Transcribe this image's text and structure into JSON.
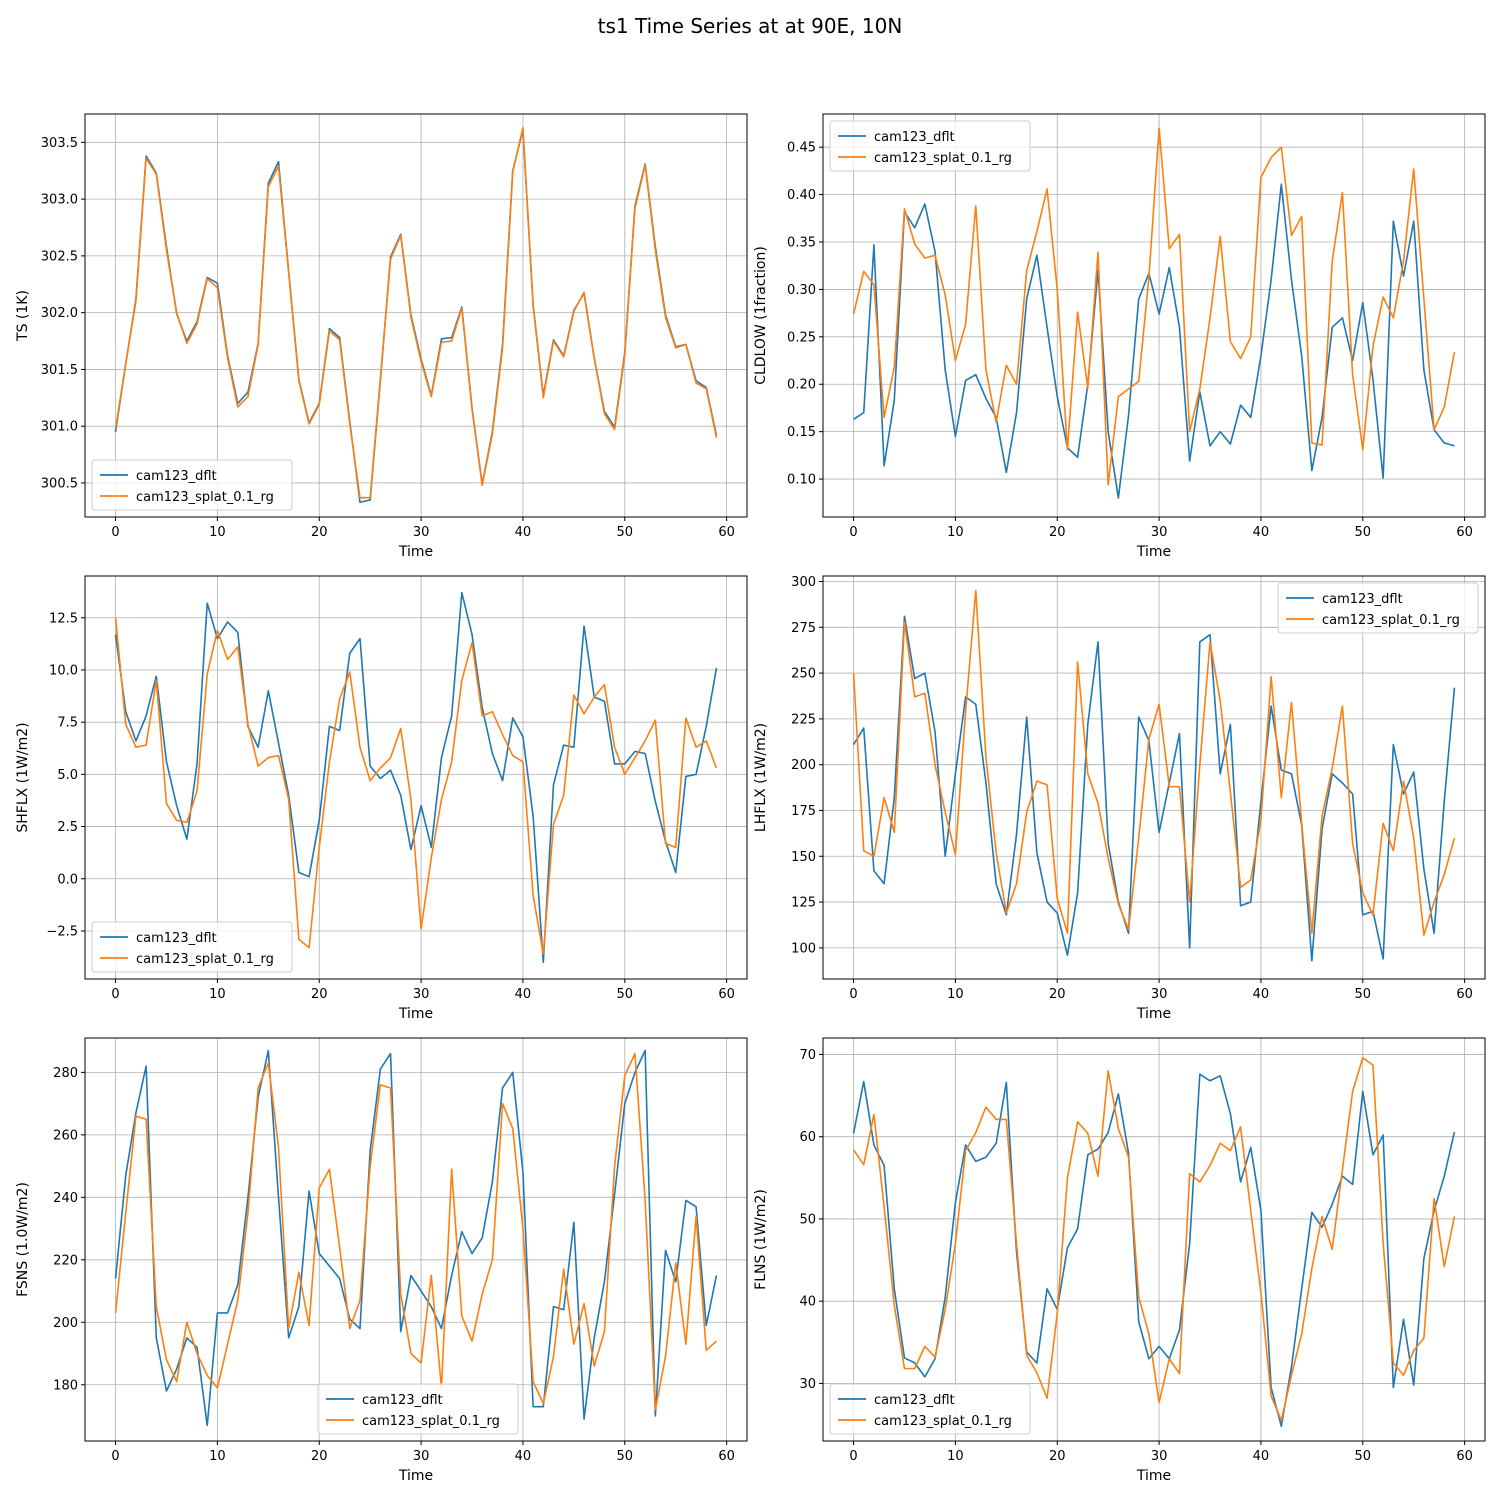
{
  "title": "ts1 Time Series at at 90E, 10N",
  "series_names": [
    "cam123_dflt",
    "cam123_splat_0.1_rg"
  ],
  "colors": {
    "cam123_dflt": "#1f77b4",
    "cam123_splat_0.1_rg": "#ff7f0e",
    "grid": "#b0b0b0"
  },
  "chart_data": [
    {
      "type": "line",
      "ylabel": "TS (1K)",
      "xlabel": "Time",
      "xlim": [
        -3,
        62
      ],
      "ylim": [
        300.2,
        303.75
      ],
      "xticks": [
        0,
        10,
        20,
        30,
        40,
        50,
        60
      ],
      "yticks": [
        300.5,
        301.0,
        301.5,
        302.0,
        302.5,
        303.0,
        303.5
      ],
      "ytick_labels": [
        "300.5",
        "301.0",
        "301.5",
        "302.0",
        "302.5",
        "303.0",
        "303.5"
      ],
      "legend": "lower-left",
      "series": [
        {
          "name": "cam123_dflt",
          "values": [
            300.95,
            301.55,
            302.12,
            303.38,
            303.23,
            302.58,
            301.99,
            301.75,
            301.92,
            302.31,
            302.26,
            301.62,
            301.2,
            301.3,
            301.73,
            303.14,
            303.33,
            302.36,
            301.41,
            301.03,
            301.2,
            301.86,
            301.78,
            301.04,
            300.33,
            300.35,
            301.4,
            302.49,
            302.69,
            301.98,
            301.59,
            301.27,
            301.77,
            301.78,
            302.05,
            301.16,
            300.49,
            300.95,
            301.72,
            303.25,
            303.61,
            302.07,
            301.27,
            301.76,
            301.62,
            302.02,
            302.17,
            301.6,
            301.13,
            300.99,
            301.65,
            302.94,
            303.31,
            302.58,
            301.98,
            301.7,
            301.72,
            301.4,
            301.34,
            300.92
          ]
        },
        {
          "name": "cam123_splat_0.1_rg",
          "values": [
            300.98,
            301.55,
            302.1,
            303.36,
            303.22,
            302.55,
            302.0,
            301.73,
            301.9,
            302.3,
            302.22,
            301.6,
            301.17,
            301.26,
            301.72,
            303.11,
            303.29,
            302.35,
            301.4,
            301.02,
            301.19,
            301.84,
            301.76,
            301.02,
            300.37,
            300.37,
            301.42,
            302.47,
            302.68,
            301.96,
            301.57,
            301.26,
            301.74,
            301.75,
            302.04,
            301.15,
            300.48,
            300.93,
            301.69,
            303.24,
            303.63,
            302.06,
            301.25,
            301.75,
            301.61,
            302.01,
            302.18,
            301.6,
            301.11,
            300.97,
            301.63,
            302.92,
            303.3,
            302.55,
            301.96,
            301.69,
            301.72,
            301.38,
            301.33,
            300.9
          ]
        }
      ]
    },
    {
      "type": "line",
      "ylabel": "CLDLOW (1fraction)",
      "xlabel": "Time",
      "xlim": [
        -3,
        62
      ],
      "ylim": [
        0.06,
        0.485
      ],
      "xticks": [
        0,
        10,
        20,
        30,
        40,
        50,
        60
      ],
      "yticks": [
        0.1,
        0.15,
        0.2,
        0.25,
        0.3,
        0.35,
        0.4,
        0.45
      ],
      "ytick_labels": [
        "0.10",
        "0.15",
        "0.20",
        "0.25",
        "0.30",
        "0.35",
        "0.40",
        "0.45"
      ],
      "legend": "upper-left",
      "series": [
        {
          "name": "cam123_dflt",
          "values": [
            0.163,
            0.17,
            0.347,
            0.114,
            0.183,
            0.382,
            0.365,
            0.39,
            0.34,
            0.215,
            0.145,
            0.204,
            0.21,
            0.185,
            0.165,
            0.107,
            0.17,
            0.29,
            0.336,
            0.26,
            0.187,
            0.133,
            0.123,
            0.2,
            0.32,
            0.15,
            0.08,
            0.167,
            0.29,
            0.317,
            0.274,
            0.323,
            0.26,
            0.119,
            0.192,
            0.135,
            0.15,
            0.137,
            0.178,
            0.165,
            0.23,
            0.31,
            0.411,
            0.31,
            0.23,
            0.109,
            0.165,
            0.26,
            0.27,
            0.225,
            0.286,
            0.205,
            0.101,
            0.372,
            0.314,
            0.372,
            0.215,
            0.152,
            0.138,
            0.135
          ]
        },
        {
          "name": "cam123_splat_0.1_rg",
          "values": [
            0.274,
            0.319,
            0.305,
            0.165,
            0.218,
            0.385,
            0.348,
            0.333,
            0.336,
            0.294,
            0.225,
            0.263,
            0.388,
            0.215,
            0.16,
            0.22,
            0.2,
            0.32,
            0.361,
            0.406,
            0.3,
            0.131,
            0.276,
            0.196,
            0.339,
            0.094,
            0.187,
            0.195,
            0.203,
            0.313,
            0.47,
            0.343,
            0.358,
            0.15,
            0.195,
            0.27,
            0.356,
            0.245,
            0.227,
            0.25,
            0.418,
            0.439,
            0.45,
            0.357,
            0.377,
            0.138,
            0.136,
            0.33,
            0.402,
            0.21,
            0.131,
            0.24,
            0.292,
            0.27,
            0.33,
            0.427,
            0.29,
            0.152,
            0.176,
            0.234
          ]
        }
      ]
    },
    {
      "type": "line",
      "ylabel": "SHFLX (1W/m2)",
      "xlabel": "Time",
      "xlim": [
        -3,
        62
      ],
      "ylim": [
        -4.8,
        14.5
      ],
      "xticks": [
        0,
        10,
        20,
        30,
        40,
        50,
        60
      ],
      "yticks": [
        -2.5,
        0.0,
        2.5,
        5.0,
        7.5,
        10.0,
        12.5
      ],
      "ytick_labels": [
        "−2.5",
        "0.0",
        "2.5",
        "5.0",
        "7.5",
        "10.0",
        "12.5"
      ],
      "legend": "lower-left",
      "series": [
        {
          "name": "cam123_dflt",
          "values": [
            11.7,
            8.0,
            6.6,
            7.8,
            9.7,
            5.6,
            3.5,
            1.9,
            5.5,
            13.2,
            11.5,
            12.3,
            11.8,
            7.3,
            6.3,
            9.0,
            6.5,
            4.0,
            0.3,
            0.1,
            2.8,
            7.3,
            7.1,
            10.8,
            11.5,
            5.4,
            4.8,
            5.2,
            4.0,
            1.4,
            3.5,
            1.5,
            5.8,
            7.8,
            13.7,
            11.7,
            8.2,
            6.0,
            4.7,
            7.7,
            6.8,
            3.0,
            -4.0,
            4.5,
            6.4,
            6.3,
            12.1,
            8.7,
            8.5,
            5.5,
            5.5,
            6.1,
            6.0,
            3.7,
            1.8,
            0.3,
            4.9,
            5.0,
            7.3,
            10.1
          ]
        },
        {
          "name": "cam123_splat_0.1_rg",
          "values": [
            12.5,
            7.4,
            6.3,
            6.4,
            9.5,
            3.6,
            2.8,
            2.7,
            4.2,
            9.8,
            11.9,
            10.5,
            11.1,
            7.4,
            5.4,
            5.8,
            5.9,
            3.8,
            -2.9,
            -3.3,
            1.5,
            5.6,
            8.6,
            9.9,
            6.3,
            4.7,
            5.3,
            5.8,
            7.2,
            3.8,
            -2.4,
            1.0,
            3.8,
            5.6,
            9.5,
            11.3,
            7.8,
            8.0,
            6.9,
            5.9,
            5.6,
            -0.8,
            -3.6,
            2.6,
            4.0,
            8.8,
            7.9,
            8.7,
            9.3,
            6.3,
            5.0,
            5.8,
            6.6,
            7.6,
            1.7,
            1.5,
            7.7,
            6.3,
            6.6,
            5.3
          ]
        }
      ]
    },
    {
      "type": "line",
      "ylabel": "LHFLX (1W/m2)",
      "xlabel": "Time",
      "xlim": [
        -3,
        62
      ],
      "ylim": [
        83,
        303
      ],
      "xticks": [
        0,
        10,
        20,
        30,
        40,
        50,
        60
      ],
      "yticks": [
        100,
        125,
        150,
        175,
        200,
        225,
        250,
        275,
        300
      ],
      "ytick_labels": [
        "100",
        "125",
        "150",
        "175",
        "200",
        "225",
        "250",
        "275",
        "300"
      ],
      "legend": "upper-right",
      "series": [
        {
          "name": "cam123_dflt",
          "values": [
            211,
            220,
            142,
            135,
            182,
            281,
            247,
            250,
            218,
            150,
            195,
            237,
            233,
            190,
            135,
            118,
            162,
            226,
            152,
            125,
            119,
            96,
            130,
            222,
            267,
            157,
            125,
            108,
            226,
            213,
            163,
            190,
            217,
            100,
            267,
            271,
            195,
            222,
            123,
            125,
            180,
            232,
            197,
            195,
            167,
            93,
            165,
            195,
            190,
            184,
            118,
            120,
            94,
            211,
            184,
            196,
            143,
            108,
            180,
            242
          ]
        },
        {
          "name": "cam123_splat_0.1_rg",
          "values": [
            250,
            153,
            150,
            182,
            163,
            278,
            237,
            239,
            200,
            174,
            151,
            229,
            295,
            204,
            152,
            119,
            135,
            174,
            191,
            189,
            127,
            108,
            256,
            195,
            179,
            149,
            124,
            110,
            160,
            214,
            233,
            188,
            188,
            125,
            200,
            267,
            235,
            185,
            133,
            137,
            170,
            248,
            182,
            234,
            168,
            108,
            172,
            198,
            232,
            157,
            130,
            118,
            168,
            153,
            191,
            160,
            107,
            125,
            140,
            160
          ]
        }
      ]
    },
    {
      "type": "line",
      "ylabel": "FSNS (1.0W/m2)",
      "xlabel": "Time",
      "xlim": [
        -3,
        62
      ],
      "ylim": [
        162,
        291
      ],
      "xticks": [
        0,
        10,
        20,
        30,
        40,
        50,
        60
      ],
      "yticks": [
        180,
        200,
        220,
        240,
        260,
        280
      ],
      "ytick_labels": [
        "180",
        "200",
        "220",
        "240",
        "260",
        "280"
      ],
      "legend": "lower-center",
      "series": [
        {
          "name": "cam123_dflt",
          "values": [
            214,
            247,
            267,
            282,
            195,
            178,
            185,
            195,
            192,
            167,
            203,
            203,
            212,
            240,
            272,
            287,
            240,
            195,
            205,
            242,
            222,
            218,
            214,
            201,
            198,
            255,
            281,
            286,
            197,
            215,
            210,
            205,
            198,
            215,
            229,
            222,
            227,
            245,
            275,
            280,
            248,
            173,
            173,
            205,
            204,
            232,
            169,
            195,
            213,
            241,
            270,
            280,
            287,
            170,
            223,
            213,
            239,
            237,
            199,
            215
          ]
        },
        {
          "name": "cam123_splat_0.1_rg",
          "values": [
            203,
            235,
            266,
            265,
            205,
            188,
            181,
            200,
            190,
            183,
            179,
            193,
            207,
            235,
            275,
            283,
            256,
            198,
            216,
            199,
            243,
            249,
            224,
            198,
            207,
            250,
            276,
            275,
            209,
            190,
            187,
            215,
            179,
            249,
            202,
            194,
            209,
            220,
            270,
            262,
            230,
            181,
            174,
            189,
            217,
            193,
            206,
            186,
            197,
            250,
            279,
            286,
            239,
            172,
            189,
            219,
            193,
            234,
            191,
            194
          ]
        }
      ]
    },
    {
      "type": "line",
      "ylabel": "FLNS (1W/m2)",
      "xlabel": "Time",
      "xlim": [
        -3,
        62
      ],
      "ylim": [
        23,
        72
      ],
      "xticks": [
        0,
        10,
        20,
        30,
        40,
        50,
        60
      ],
      "yticks": [
        30,
        40,
        50,
        60,
        70
      ],
      "ytick_labels": [
        "30",
        "40",
        "50",
        "60",
        "70"
      ],
      "legend": "lower-left",
      "series": [
        {
          "name": "cam123_dflt",
          "values": [
            60.4,
            66.7,
            59.0,
            56.5,
            41.5,
            33.1,
            32.5,
            30.8,
            33.0,
            40.5,
            52.0,
            59.0,
            57.0,
            57.5,
            59.2,
            66.6,
            46.0,
            33.8,
            32.5,
            41.5,
            39.0,
            46.5,
            48.8,
            57.8,
            58.5,
            60.5,
            65.2,
            58.0,
            37.5,
            33.0,
            34.5,
            33.0,
            36.5,
            47.0,
            67.6,
            66.8,
            67.4,
            62.8,
            54.5,
            58.7,
            51.0,
            29.5,
            24.8,
            32.0,
            41.5,
            50.8,
            49.0,
            51.8,
            55.2,
            54.2,
            65.5,
            57.8,
            60.2,
            29.5,
            37.8,
            29.8,
            45.2,
            51.0,
            55.2,
            60.6
          ]
        },
        {
          "name": "cam123_splat_0.1_rg",
          "values": [
            58.4,
            56.6,
            62.7,
            51.5,
            39.5,
            31.8,
            31.8,
            34.5,
            33.2,
            39.0,
            47.0,
            58.3,
            60.5,
            63.6,
            62.1,
            62.1,
            47.0,
            33.4,
            31.3,
            28.2,
            38.5,
            55.0,
            61.8,
            60.4,
            55.2,
            68.0,
            61.0,
            57.5,
            40.5,
            36.0,
            27.7,
            33.0,
            31.2,
            55.5,
            54.5,
            56.5,
            59.2,
            58.3,
            61.2,
            51.0,
            41.0,
            28.5,
            25.5,
            31.0,
            36.0,
            44.0,
            50.3,
            46.3,
            56.0,
            65.5,
            69.6,
            68.7,
            47.0,
            32.5,
            31.0,
            34.0,
            35.5,
            52.5,
            44.2,
            50.3
          ]
        }
      ]
    }
  ]
}
